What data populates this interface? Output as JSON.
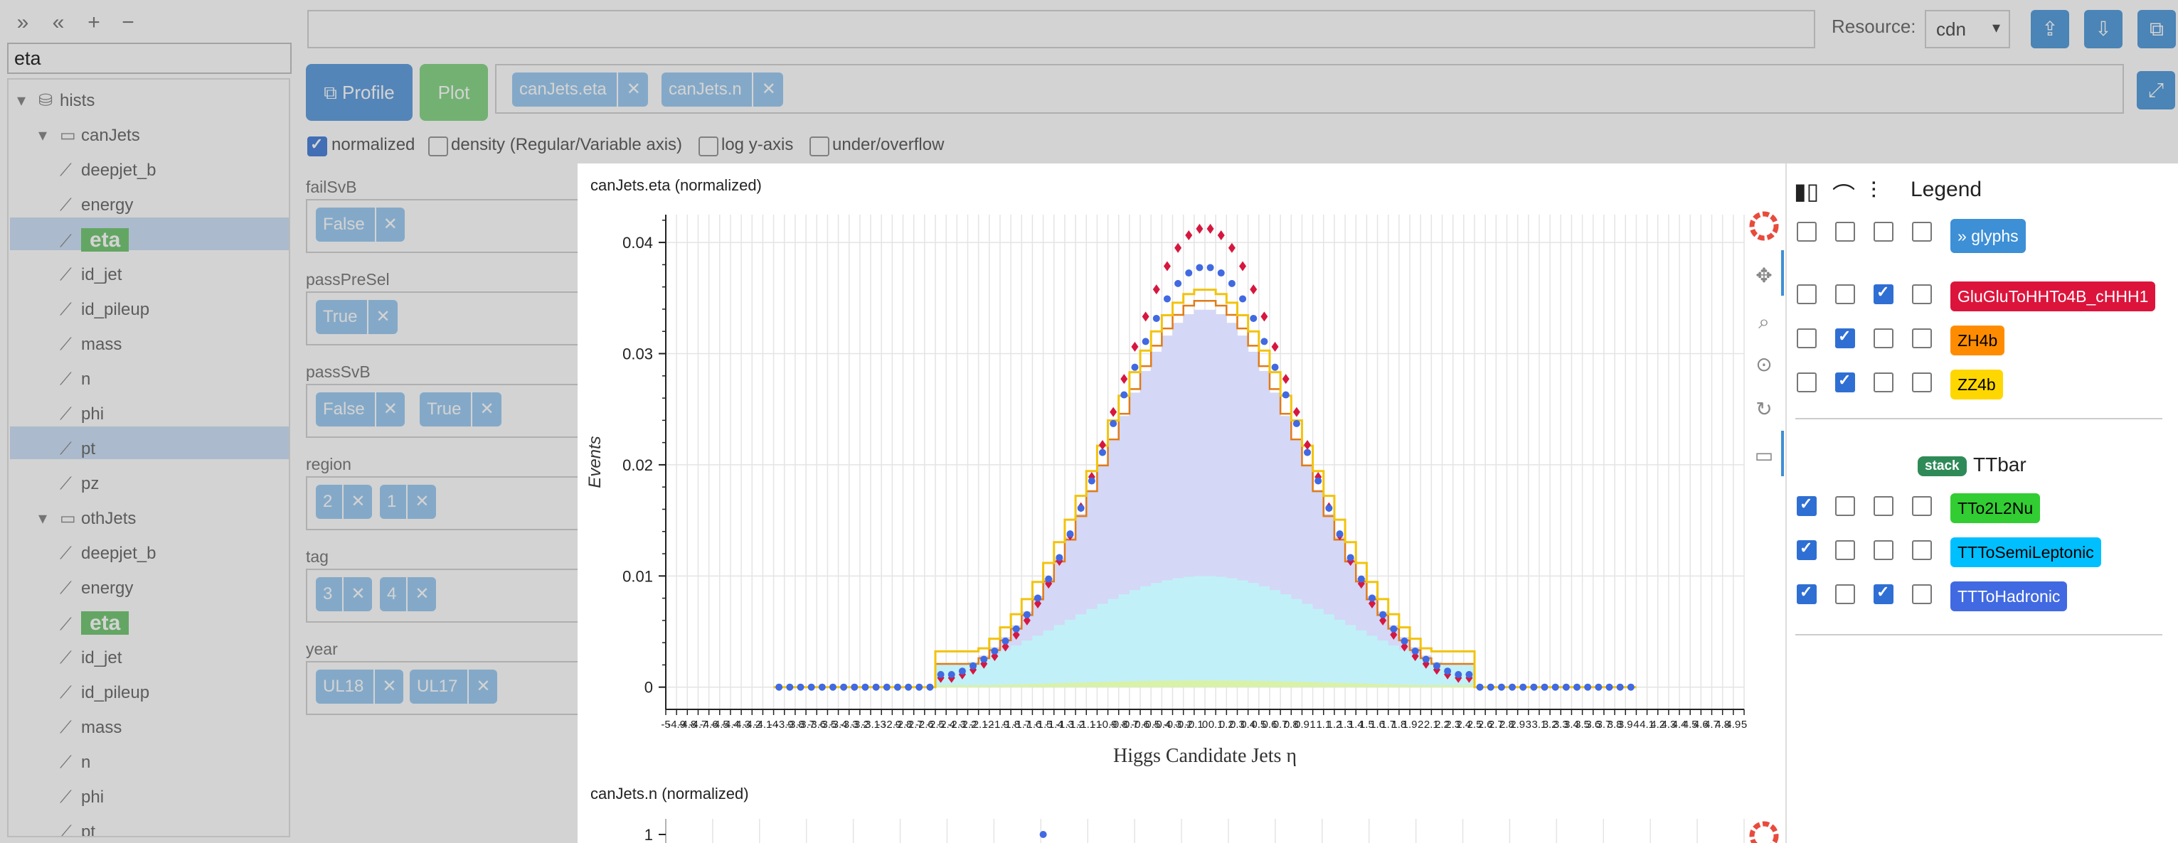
{
  "sidebar": {
    "filter_value": "eta",
    "tree": [
      {
        "label": "hists",
        "kind": "db",
        "level": 0,
        "row": 0
      },
      {
        "label": "canJets",
        "kind": "folder",
        "level": 1,
        "row": 1
      },
      {
        "label": "deepjet_b",
        "kind": "hist",
        "level": 2,
        "row": 2
      },
      {
        "label": "energy",
        "kind": "hist",
        "level": 2,
        "row": 3
      },
      {
        "label": "eta",
        "kind": "hist",
        "level": 2,
        "row": 4
      },
      {
        "label": "id_jet",
        "kind": "hist",
        "level": 2,
        "row": 5
      },
      {
        "label": "id_pileup",
        "kind": "hist",
        "level": 2,
        "row": 6
      },
      {
        "label": "mass",
        "kind": "hist",
        "level": 2,
        "row": 7
      },
      {
        "label": "n",
        "kind": "hist",
        "level": 2,
        "row": 8
      },
      {
        "label": "phi",
        "kind": "hist",
        "level": 2,
        "row": 9
      },
      {
        "label": "pt",
        "kind": "hist",
        "level": 2,
        "row": 10
      },
      {
        "label": "pz",
        "kind": "hist",
        "level": 2,
        "row": 11
      },
      {
        "label": "othJets",
        "kind": "folder",
        "level": 1,
        "row": 12
      },
      {
        "label": "deepjet_b",
        "kind": "hist",
        "level": 2,
        "row": 13
      },
      {
        "label": "energy",
        "kind": "hist",
        "level": 2,
        "row": 14
      },
      {
        "label": "eta",
        "kind": "hist",
        "level": 2,
        "row": 15
      },
      {
        "label": "id_jet",
        "kind": "hist",
        "level": 2,
        "row": 16
      },
      {
        "label": "id_pileup",
        "kind": "hist",
        "level": 2,
        "row": 17
      },
      {
        "label": "mass",
        "kind": "hist",
        "level": 2,
        "row": 18
      },
      {
        "label": "n",
        "kind": "hist",
        "level": 2,
        "row": 19
      },
      {
        "label": "phi",
        "kind": "hist",
        "level": 2,
        "row": 20
      },
      {
        "label": "pt",
        "kind": "hist",
        "level": 2,
        "row": 21
      }
    ]
  },
  "topbar": {
    "resource_label": "Resource:",
    "resource_value": "cdn",
    "profile_label": "Profile",
    "plot_label": "Plot",
    "selected_hists": [
      "canJets.eta",
      "canJets.n"
    ]
  },
  "options": [
    {
      "label": "normalized",
      "checked": true
    },
    {
      "label": "density (Regular/Variable axis)",
      "checked": false
    },
    {
      "label": "log y-axis",
      "checked": false
    },
    {
      "label": "under/overflow",
      "checked": false
    }
  ],
  "filters": [
    {
      "label": "failSvB",
      "values": [
        "False"
      ]
    },
    {
      "label": "passPreSel",
      "values": [
        "True"
      ]
    },
    {
      "label": "passSvB",
      "values": [
        "False",
        "True"
      ]
    },
    {
      "label": "region",
      "values": [
        "2",
        "1"
      ]
    },
    {
      "label": "tag",
      "values": [
        "3",
        "4"
      ]
    },
    {
      "label": "year",
      "values": [
        "UL18",
        "UL17"
      ]
    }
  ],
  "plot": {
    "title1": "canJets.eta (normalized)",
    "title2": "canJets.n (normalized)",
    "second_plot_first_tick": "1"
  },
  "chart_data": {
    "type": "line",
    "title": "canJets.eta (normalized)",
    "xlabel": "Higgs Candidate Jets η",
    "ylabel": "Events",
    "ylim": [
      -0.002,
      0.0425
    ],
    "xlim": [
      -5,
      5
    ],
    "y_ticks": [
      "0",
      "0.01",
      "0.02",
      "0.03",
      "0.04"
    ],
    "bins": 80,
    "bin_range": [
      -4.0,
      4.0
    ],
    "nonzero_range": [
      -2.5,
      2.5
    ],
    "grid": true,
    "series": [
      {
        "name": "GluGluToHHTo4B_cHHH1",
        "style": "diamond markers",
        "color": "#d6173f",
        "peak": 0.0413
      },
      {
        "name": "ZH4b",
        "style": "step",
        "color": "#f28c18",
        "peak": 0.0348
      },
      {
        "name": "ZZ4b",
        "style": "step",
        "color": "#f2c30d",
        "peak": 0.0358
      },
      {
        "name": "TTbar stack (TTo2L2Nu + TTToSemiLeptonic + TTToHadronic)",
        "style": "filled stack",
        "color": "#c8cdf2",
        "peak": 0.034
      },
      {
        "name": "TTToHadronic",
        "style": "circle markers",
        "color": "#4169e1",
        "peak": 0.0378
      },
      {
        "name": "TTToSemiLeptonic",
        "style": "filled area",
        "color": "#bdeff8",
        "peak": 0.01
      },
      {
        "name": "TTo2L2Nu",
        "style": "filled area",
        "color": "#d6f0a0",
        "peak": 0.0006
      }
    ]
  },
  "legend": {
    "title": "Legend",
    "glyphs_label": "glyphs",
    "stack_tag": "stack",
    "stack_name": "TTbar",
    "entries": [
      {
        "label": "GluGluToHHTo4B_cHHH1",
        "bg": "#dc143c",
        "fg": "#ffffff",
        "checks": [
          false,
          false,
          true,
          false
        ]
      },
      {
        "label": "ZH4b",
        "bg": "#ff8c00",
        "fg": "#000000",
        "checks": [
          false,
          true,
          false,
          false
        ]
      },
      {
        "label": "ZZ4b",
        "bg": "#ffd700",
        "fg": "#000000",
        "checks": [
          false,
          true,
          false,
          false
        ]
      }
    ],
    "stack_entries": [
      {
        "label": "TTo2L2Nu",
        "bg": "#32cd32",
        "fg": "#000000",
        "checks": [
          true,
          false,
          false,
          false
        ]
      },
      {
        "label": "TTToSemiLeptonic",
        "bg": "#00bfff",
        "fg": "#000000",
        "checks": [
          true,
          false,
          false,
          false
        ]
      },
      {
        "label": "TTToHadronic",
        "bg": "#4169e1",
        "fg": "#ffffff",
        "checks": [
          true,
          false,
          true,
          false
        ]
      }
    ]
  }
}
